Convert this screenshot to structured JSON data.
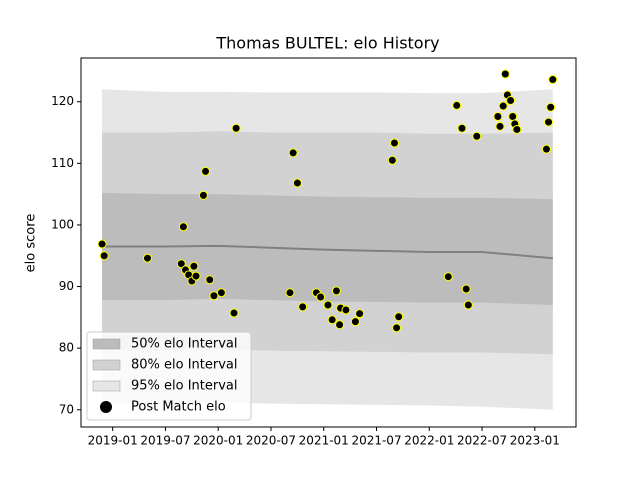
{
  "chart_data": {
    "type": "scatter",
    "title": "Thomas BULTEL: elo History",
    "ylabel": "elo score",
    "xlim": [
      2018.7,
      2023.39
    ],
    "ylim": [
      67.2,
      127.1
    ],
    "xticks": [
      {
        "value": 2019.0,
        "label": "2019-01"
      },
      {
        "value": 2019.5,
        "label": "2019-07"
      },
      {
        "value": 2020.0,
        "label": "2020-01"
      },
      {
        "value": 2020.5,
        "label": "2020-07"
      },
      {
        "value": 2021.0,
        "label": "2021-01"
      },
      {
        "value": 2021.5,
        "label": "2021-07"
      },
      {
        "value": 2022.0,
        "label": "2022-01"
      },
      {
        "value": 2022.5,
        "label": "2022-07"
      },
      {
        "value": 2023.0,
        "label": "2023-01"
      }
    ],
    "yticks": [
      70,
      80,
      90,
      100,
      110,
      120
    ],
    "band_x": [
      2018.9,
      2019.5,
      2020.0,
      2020.5,
      2021.0,
      2021.5,
      2022.0,
      2022.5,
      2023.17
    ],
    "bands": [
      {
        "name": "50% elo Interval",
        "color": "#bcbcbc",
        "upper": [
          105.2,
          105.0,
          105.0,
          104.8,
          104.6,
          104.5,
          104.4,
          104.4,
          104.2
        ],
        "lower": [
          87.8,
          87.8,
          88.0,
          87.8,
          87.6,
          87.5,
          87.4,
          87.4,
          87.0
        ]
      },
      {
        "name": "80% elo Interval",
        "color": "#d2d2d2",
        "upper": [
          115.0,
          115.0,
          115.2,
          115.0,
          115.0,
          115.0,
          114.8,
          114.8,
          115.0
        ],
        "lower": [
          79.7,
          79.7,
          79.8,
          79.6,
          79.5,
          79.4,
          79.3,
          79.3,
          79.0
        ]
      },
      {
        "name": "95% elo Interval",
        "color": "#e6e6e6",
        "upper": [
          122.0,
          121.6,
          121.6,
          121.5,
          121.5,
          121.5,
          121.4,
          121.4,
          122.0
        ],
        "lower": [
          71.0,
          71.0,
          71.2,
          71.0,
          70.9,
          70.8,
          70.7,
          70.5,
          70.0
        ]
      }
    ],
    "line": {
      "color": "#808080",
      "values": [
        96.5,
        96.5,
        96.6,
        96.3,
        96.0,
        95.8,
        95.6,
        95.6,
        94.6
      ]
    },
    "series": [
      {
        "name": "Post Match elo",
        "color": "#000000",
        "edgecolor": "#ffff00",
        "x": [
          2018.9,
          2018.92,
          2019.33,
          2019.65,
          2019.67,
          2019.69,
          2019.72,
          2019.75,
          2019.77,
          2019.79,
          2019.86,
          2019.88,
          2019.92,
          2019.96,
          2020.03,
          2020.15,
          2020.17,
          2020.68,
          2020.71,
          2020.75,
          2020.8,
          2020.93,
          2020.97,
          2021.04,
          2021.08,
          2021.12,
          2021.15,
          2021.16,
          2021.21,
          2021.3,
          2021.34,
          2021.65,
          2021.67,
          2021.69,
          2021.71,
          2022.18,
          2022.26,
          2022.31,
          2022.35,
          2022.37,
          2022.45,
          2022.65,
          2022.67,
          2022.7,
          2022.72,
          2022.74,
          2022.77,
          2022.79,
          2022.81,
          2022.83,
          2023.11,
          2023.13,
          2023.15,
          2023.17
        ],
        "values": [
          96.9,
          95.0,
          94.6,
          93.7,
          99.7,
          92.7,
          91.9,
          90.9,
          93.3,
          91.7,
          104.8,
          108.7,
          91.1,
          88.5,
          89.0,
          85.7,
          115.7,
          89.0,
          111.7,
          106.8,
          86.7,
          89.0,
          88.3,
          87.0,
          84.6,
          89.3,
          83.8,
          86.5,
          86.2,
          84.3,
          85.6,
          110.5,
          113.3,
          83.3,
          85.1,
          91.6,
          119.4,
          115.7,
          89.6,
          87.0,
          114.4,
          117.6,
          116.0,
          119.3,
          124.5,
          121.1,
          120.2,
          117.6,
          116.4,
          115.5,
          112.3,
          116.7,
          119.1,
          123.6
        ]
      }
    ],
    "legend": "lower left"
  }
}
